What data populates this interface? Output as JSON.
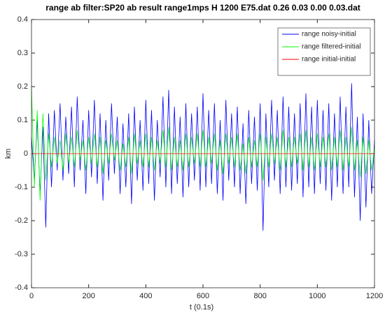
{
  "chart_data": {
    "type": "line",
    "title": "range ab filter:SP20 ab result range1mps H 1200 E75.dat 0.26 0.03 0.00 0.03.dat",
    "xlabel": "t (0.1s)",
    "ylabel": "km",
    "x": [
      0,
      10,
      20,
      30,
      40,
      50,
      60,
      70,
      80,
      90,
      100,
      110,
      120,
      130,
      140,
      150,
      160,
      170,
      180,
      190,
      200,
      210,
      220,
      230,
      240,
      250,
      260,
      270,
      280,
      290,
      300,
      310,
      320,
      330,
      340,
      350,
      360,
      370,
      380,
      390,
      400,
      410,
      420,
      430,
      440,
      450,
      460,
      470,
      480,
      490,
      500,
      510,
      520,
      530,
      540,
      550,
      560,
      570,
      580,
      590,
      600,
      610,
      620,
      630,
      640,
      650,
      660,
      670,
      680,
      690,
      700,
      710,
      720,
      730,
      740,
      750,
      760,
      770,
      780,
      790,
      800,
      810,
      820,
      830,
      840,
      850,
      860,
      870,
      880,
      890,
      900,
      910,
      920,
      930,
      940,
      950,
      960,
      970,
      980,
      990,
      1000,
      1010,
      1020,
      1030,
      1040,
      1050,
      1060,
      1070,
      1080,
      1090,
      1100,
      1110,
      1120,
      1130,
      1140,
      1150,
      1160,
      1170,
      1180,
      1190,
      1200
    ],
    "series": [
      {
        "name": "range noisy-initial",
        "color": "#0000ff",
        "values": [
          0.05,
          -0.08,
          0.1,
          -0.12,
          0.08,
          -0.22,
          0.12,
          -0.1,
          0.13,
          -0.05,
          0.15,
          -0.08,
          0.11,
          -0.06,
          0.14,
          -0.1,
          0.17,
          -0.05,
          0.1,
          -0.12,
          0.13,
          -0.07,
          0.16,
          -0.09,
          0.12,
          -0.14,
          0.1,
          -0.08,
          0.15,
          -0.06,
          0.11,
          -0.12,
          0.09,
          -0.1,
          0.12,
          -0.15,
          0.14,
          -0.08,
          0.1,
          -0.11,
          0.16,
          -0.09,
          0.13,
          -0.14,
          0.1,
          -0.07,
          0.17,
          -0.1,
          0.19,
          -0.12,
          0.14,
          -0.09,
          0.11,
          -0.13,
          0.15,
          -0.1,
          0.12,
          -0.08,
          0.14,
          -0.11,
          0.18,
          -0.1,
          0.13,
          -0.09,
          0.15,
          -0.12,
          0.1,
          -0.14,
          0.16,
          -0.08,
          0.12,
          -0.1,
          0.14,
          -0.12,
          0.09,
          -0.15,
          0.13,
          -0.09,
          0.11,
          -0.11,
          0.15,
          -0.23,
          0.12,
          -0.1,
          0.16,
          -0.08,
          0.13,
          -0.12,
          0.17,
          -0.1,
          0.14,
          -0.11,
          0.12,
          -0.09,
          0.15,
          -0.13,
          0.18,
          -0.1,
          0.14,
          -0.12,
          0.16,
          -0.09,
          0.13,
          -0.11,
          0.15,
          -0.14,
          0.12,
          -0.1,
          0.17,
          -0.12,
          0.14,
          -0.1,
          0.21,
          -0.13,
          0.11,
          -0.2,
          0.12,
          -0.16,
          0.1,
          -0.12,
          0.04
        ]
      },
      {
        "name": "range filtered-initial",
        "color": "#00ff00",
        "values": [
          0.2,
          -0.1,
          0.13,
          -0.14,
          0.12,
          -0.08,
          0.06,
          -0.04,
          0.05,
          -0.03,
          0.04,
          -0.05,
          0.06,
          -0.03,
          0.05,
          -0.04,
          0.07,
          -0.02,
          0.04,
          -0.05,
          0.05,
          -0.03,
          0.06,
          -0.04,
          0.05,
          -0.06,
          0.04,
          -0.03,
          0.06,
          -0.02,
          0.04,
          -0.05,
          0.03,
          -0.04,
          0.05,
          -0.06,
          0.06,
          -0.03,
          0.04,
          -0.04,
          0.06,
          -0.04,
          0.05,
          -0.05,
          0.04,
          -0.03,
          0.07,
          -0.04,
          0.08,
          -0.05,
          0.05,
          -0.04,
          0.04,
          -0.05,
          0.06,
          -0.04,
          0.05,
          -0.03,
          0.06,
          -0.04,
          0.07,
          -0.04,
          0.05,
          -0.03,
          0.06,
          -0.05,
          0.04,
          -0.06,
          0.06,
          -0.03,
          0.05,
          -0.04,
          0.06,
          -0.05,
          0.03,
          -0.06,
          0.05,
          -0.04,
          0.04,
          -0.04,
          0.06,
          -0.08,
          0.05,
          -0.04,
          0.06,
          -0.03,
          0.05,
          -0.05,
          0.07,
          -0.04,
          0.05,
          -0.04,
          0.05,
          -0.03,
          0.06,
          -0.05,
          0.07,
          -0.04,
          0.05,
          -0.05,
          0.06,
          -0.04,
          0.05,
          -0.04,
          0.06,
          -0.05,
          0.05,
          -0.04,
          0.07,
          -0.05,
          0.05,
          -0.04,
          0.08,
          -0.05,
          0.04,
          -0.07,
          0.05,
          -0.06,
          0.04,
          -0.05,
          0.02
        ]
      },
      {
        "name": "range initial-initial",
        "color": "#ff0000",
        "values": [
          0,
          0,
          0,
          0,
          0,
          0,
          0,
          0,
          0,
          0,
          0,
          0,
          0,
          0,
          0,
          0,
          0,
          0,
          0,
          0,
          0,
          0,
          0,
          0,
          0,
          0,
          0,
          0,
          0,
          0,
          0,
          0,
          0,
          0,
          0,
          0,
          0,
          0,
          0,
          0,
          0,
          0,
          0,
          0,
          0,
          0,
          0,
          0,
          0,
          0,
          0,
          0,
          0,
          0,
          0,
          0,
          0,
          0,
          0,
          0,
          0,
          0,
          0,
          0,
          0,
          0,
          0,
          0,
          0,
          0,
          0,
          0,
          0,
          0,
          0,
          0,
          0,
          0,
          0,
          0,
          0,
          0,
          0,
          0,
          0,
          0,
          0,
          0,
          0,
          0,
          0,
          0,
          0,
          0,
          0,
          0,
          0,
          0,
          0,
          0,
          0,
          0,
          0,
          0,
          0,
          0,
          0,
          0,
          0,
          0,
          0,
          0,
          0,
          0,
          0,
          0,
          0,
          0,
          0,
          0,
          0
        ]
      }
    ],
    "xlim": [
      0,
      1200
    ],
    "xticks": [
      0,
      200,
      400,
      600,
      800,
      1000,
      1200
    ],
    "ylim": [
      -0.4,
      0.4
    ],
    "yticks": [
      -0.4,
      -0.3,
      -0.2,
      -0.1,
      0,
      0.1,
      0.2,
      0.3,
      0.4
    ],
    "grid": false,
    "legend": "northeast"
  }
}
